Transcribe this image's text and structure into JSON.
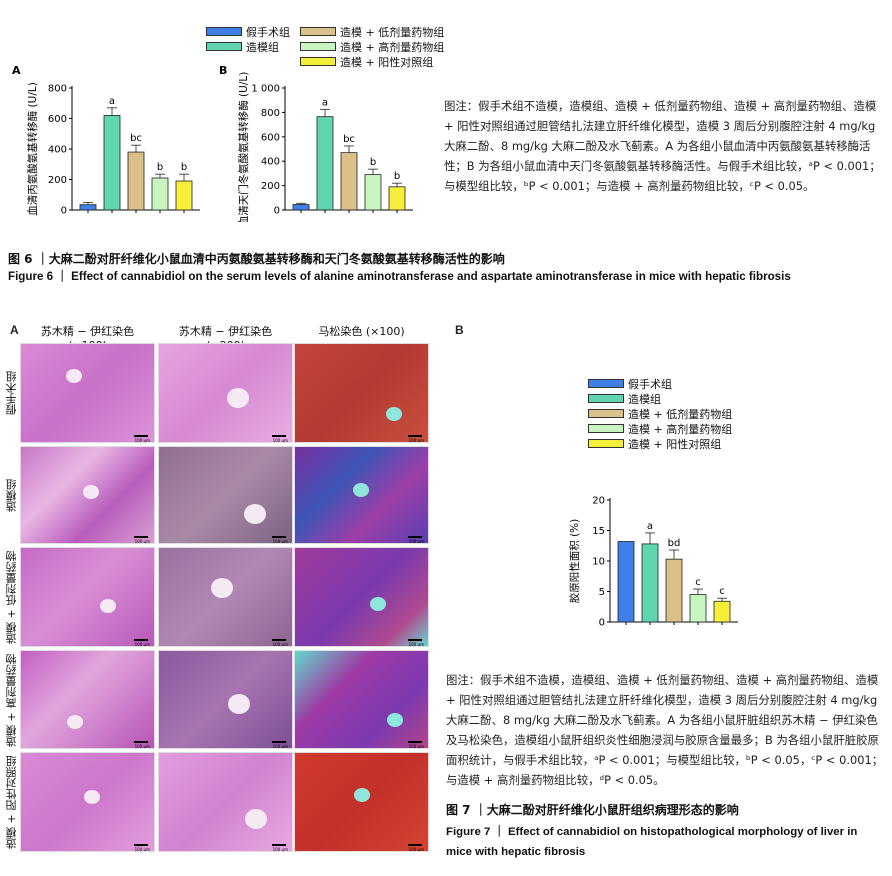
{
  "fig6": {
    "legend_left": [
      "假手术组",
      "造模组"
    ],
    "legend_right": [
      "造模 + 低剂量药物组",
      "造模 + 高剂量药物组",
      "造模 + 阳性对照组"
    ],
    "note": "图注：假手术组不造模，造模组、造模 + 低剂量药物组、造模 + 高剂量药物组、造模 + 阳性对照组通过胆管结扎法建立肝纤维化模型，造模 3 周后分别腹腔注射 4 mg/kg 大麻二酚、8 mg/kg 大麻二酚及水飞蓟素。A 为各组小鼠血清中丙氨酸氨基转移酶活性；B 为各组小鼠血清中天门冬氨酸氨基转移酶活性。与假手术组比较，ᵃP < 0.001；与模型组比较，ᵇP < 0.001；与造模 + 高剂量药物组比较，ᶜP < 0.05。",
    "title_cn": "图 6 ｜大麻二酚对肝纤维化小鼠血清中丙氨酸氨基转移酶和天门冬氨酸氨基转移酶活性的影响",
    "title_en": "Figure 6 ｜ Effect of cannabidiol on the serum levels of alanine aminotransferase and aspartate aminotransferase in mice with hepatic fibrosis"
  },
  "fig7": {
    "panel_a": "A",
    "panel_b": "B",
    "col_heads": [
      "苏木精 − 伊红染色 (×100)",
      "苏木精 − 伊红染色 (×200)",
      "马松染色 (×100)"
    ],
    "row_labels": [
      "假手术组",
      "造模组",
      "造模 + 低剂量药物组",
      "造模 + 高剂量药物组",
      "造模 + 阳性对照组"
    ],
    "scale_text": "100 μm",
    "legend": [
      "假手术组",
      "造模组",
      "造模 + 低剂量药物组",
      "造模 + 高剂量药物组",
      "造模 + 阳性对照组"
    ],
    "note": "图注：假手术组不造模，造模组、造模 + 低剂量药物组、造模 + 高剂量药物组、造模 + 阳性对照组通过胆管结扎法建立肝纤维化模型，造模 3 周后分别腹腔注射 4 mg/kg 大麻二酚、8 mg/kg 大麻二酚及水飞蓟素。A 为各组小鼠肝脏组织苏木精 − 伊红染色及马松染色，造模组小鼠肝组织炎性细胞浸润与胶原含量最多；B 为各组小鼠肝脏胶原面积统计，与假手术组比较，ᵃP < 0.001；与模型组比较，ᵇP < 0.05，ᶜP < 0.001；与造模 + 高剂量药物组比较，ᵈP < 0.05。",
    "title_cn": "图 7 ｜大麻二酚对肝纤维化小鼠肝组织病理形态的影响",
    "title_en": "Figure 7 ｜ Effect of cannabidiol on histopathological morphology of liver in mice with hepatic fibrosis"
  },
  "colors": {
    "sham": "#3f7fe8",
    "model": "#5fd6b0",
    "low": "#dcc08a",
    "high": "#c8f5c0",
    "positive": "#f5ef3a",
    "he": "#c76bc4",
    "masson": "#c0403a"
  },
  "chart_data": [
    {
      "type": "bar",
      "panel": "A",
      "ylabel": "血清丙氨酸氨基转移酶 (U/L)",
      "ylim": [
        0,
        800
      ],
      "yticks": [
        "0",
        "200",
        "400",
        "600",
        "800"
      ],
      "values": [
        35,
        620,
        380,
        210,
        190
      ],
      "errors": [
        15,
        50,
        45,
        25,
        45
      ],
      "sig": [
        "",
        "a",
        "bc",
        "b",
        "b"
      ]
    },
    {
      "type": "bar",
      "panel": "B",
      "ylabel": "血清天门冬氨酸氨基转移酶 (U/L)",
      "ylim": [
        0,
        1000
      ],
      "yticks": [
        "0",
        "200",
        "400",
        "600",
        "800",
        "1 000"
      ],
      "values": [
        45,
        765,
        470,
        290,
        190
      ],
      "errors": [
        10,
        60,
        55,
        45,
        30
      ],
      "sig": [
        "",
        "a",
        "bc",
        "b",
        "b"
      ]
    },
    {
      "type": "bar",
      "panel": "B",
      "ylabel": "胶原阳性面积 (%)",
      "ylim": [
        0,
        20
      ],
      "yticks": [
        "0",
        "5",
        "10",
        "15",
        "20"
      ],
      "values": [
        13.2,
        12.8,
        10.3,
        4.5,
        3.4
      ],
      "errors": [
        0,
        1.8,
        1.5,
        0.9,
        0.5
      ],
      "sig": [
        "",
        "a",
        "bd",
        "c",
        "c"
      ]
    }
  ]
}
